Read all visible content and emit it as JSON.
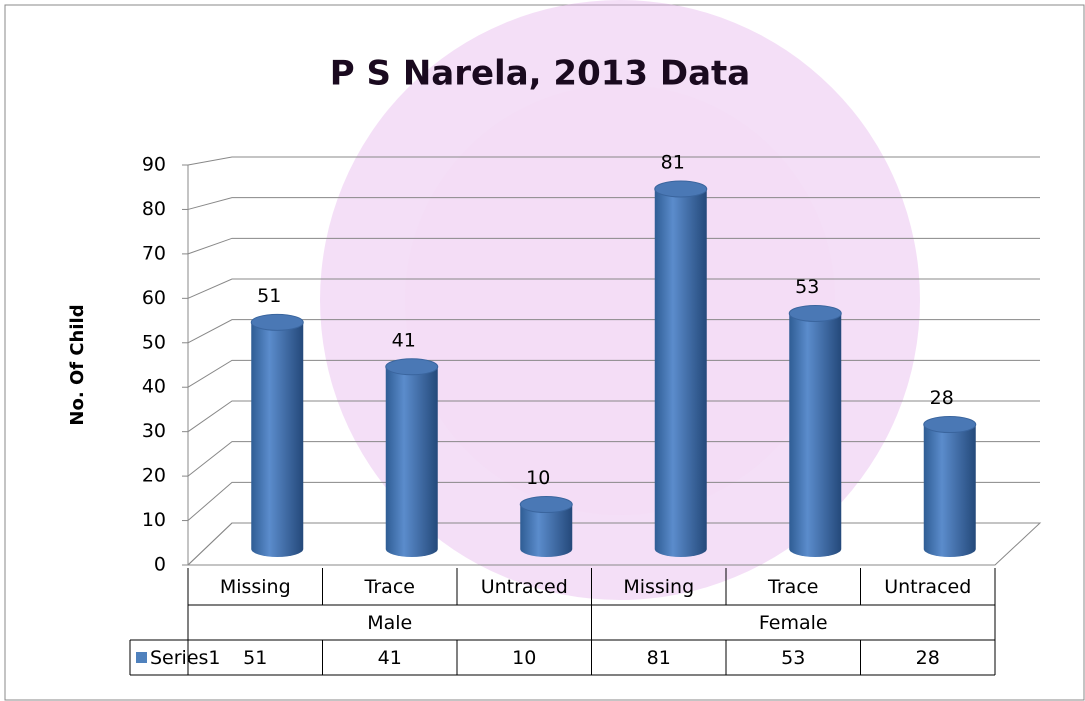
{
  "chart_data": {
    "type": "bar",
    "title": "P S Narela, 2013 Data",
    "y_label": "No. Of Child",
    "categories": [
      "Missing",
      "Trace",
      "Untraced",
      "Missing",
      "Trace",
      "Untraced"
    ],
    "groups": [
      "Male",
      "Female"
    ],
    "series": [
      {
        "name": "Series1",
        "color": "#4f81bd",
        "values": [
          51,
          41,
          10,
          81,
          53,
          28
        ]
      }
    ],
    "ylim": [
      0,
      90
    ],
    "yticks": [
      0,
      10,
      20,
      30,
      40,
      50,
      60,
      70,
      80,
      90
    ],
    "grid": true
  }
}
